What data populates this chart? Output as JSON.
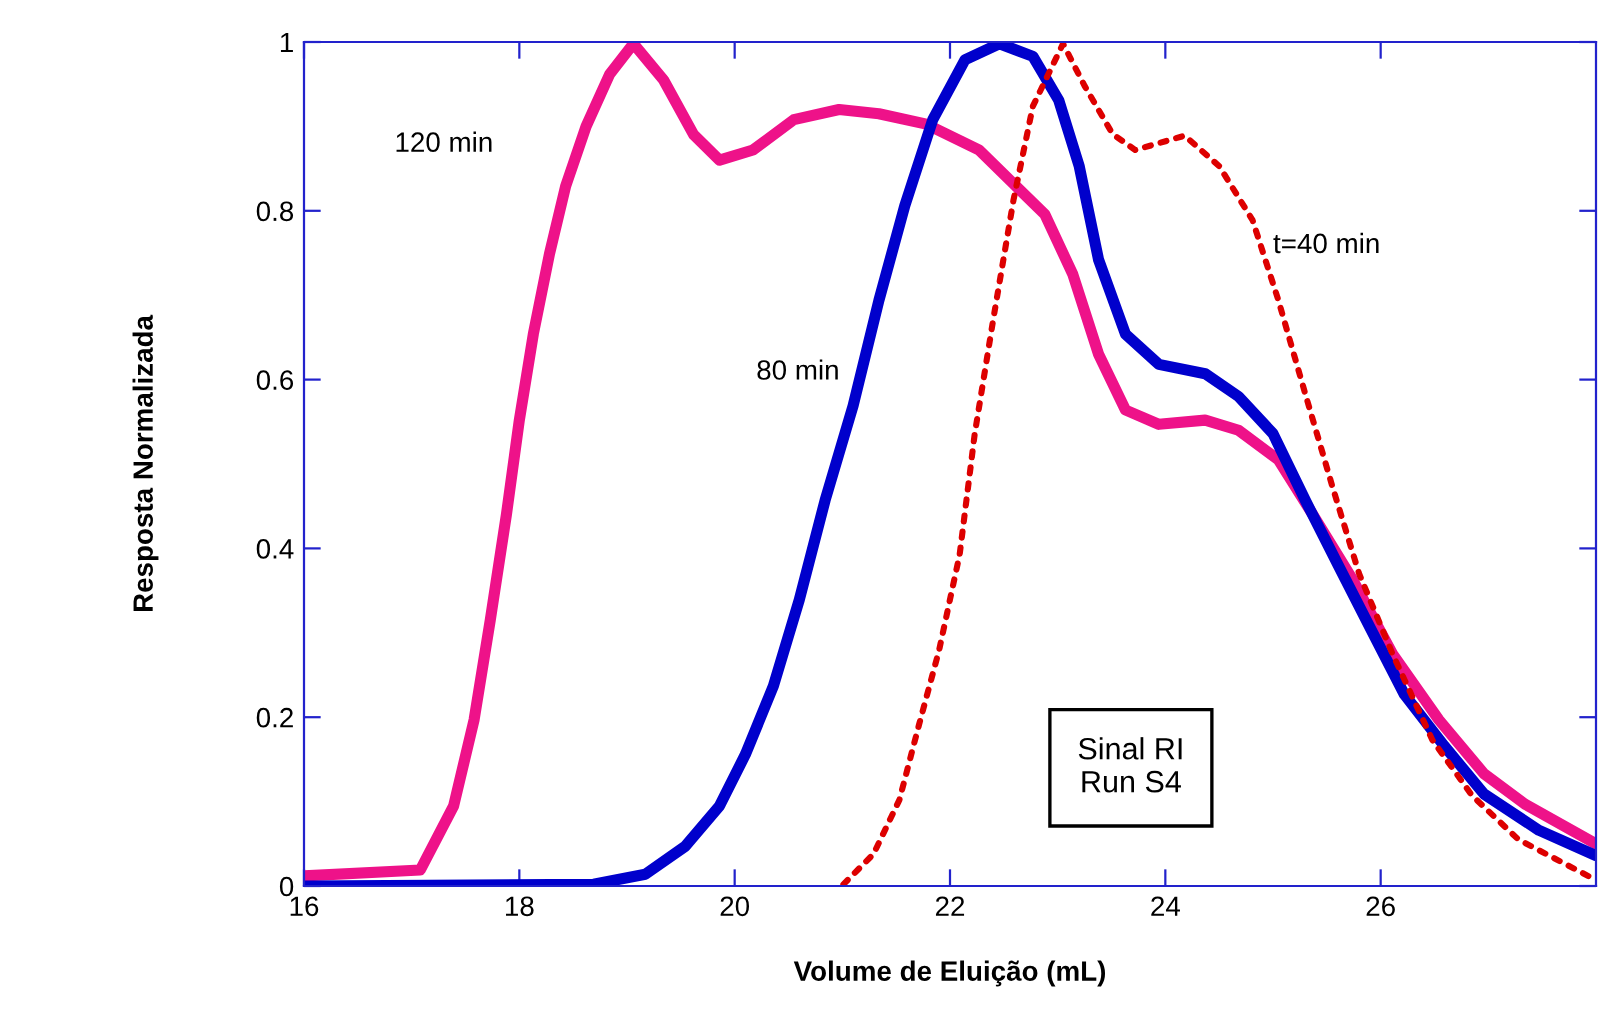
{
  "chart_data": {
    "type": "line",
    "xlabel": "Volume de Eluição (mL)",
    "ylabel": "Resposta Normalizada",
    "xlim": [
      16,
      28
    ],
    "ylim": [
      0,
      1
    ],
    "xticks": [
      16,
      18,
      20,
      22,
      24,
      26
    ],
    "yticks": [
      0,
      0.2,
      0.4,
      0.6,
      0.8,
      1
    ],
    "grid": false,
    "legend": false,
    "series": [
      {
        "name": "120 min",
        "color": "#ee1289",
        "line_style": "solid",
        "x": [
          16,
          17.08,
          17.39,
          17.58,
          17.73,
          17.88,
          18.0,
          18.13,
          18.28,
          18.43,
          18.62,
          18.84,
          19.06,
          19.34,
          19.62,
          19.86,
          20.17,
          20.55,
          20.97,
          21.34,
          21.77,
          22.27,
          22.59,
          22.88,
          23.14,
          23.38,
          23.63,
          23.94,
          24.37,
          24.68,
          25.05,
          25.37,
          25.74,
          26.11,
          26.54,
          26.96,
          27.34,
          28.0
        ],
        "values": [
          0.012,
          0.019,
          0.095,
          0.197,
          0.315,
          0.44,
          0.552,
          0.654,
          0.749,
          0.829,
          0.9,
          0.962,
          0.998,
          0.955,
          0.89,
          0.86,
          0.872,
          0.908,
          0.92,
          0.915,
          0.903,
          0.872,
          0.832,
          0.796,
          0.725,
          0.63,
          0.564,
          0.547,
          0.552,
          0.54,
          0.505,
          0.44,
          0.363,
          0.275,
          0.197,
          0.133,
          0.097,
          0.05
        ]
      },
      {
        "name": "80 min",
        "color": "#0000cc",
        "line_style": "solid",
        "x": [
          16,
          18.69,
          19.17,
          19.54,
          19.86,
          20.1,
          20.36,
          20.6,
          20.84,
          21.1,
          21.34,
          21.58,
          21.84,
          22.14,
          22.46,
          22.77,
          23.01,
          23.2,
          23.38,
          23.63,
          23.94,
          24.37,
          24.68,
          25.0,
          25.3,
          25.61,
          25.93,
          26.22,
          26.59,
          26.96,
          27.47,
          28.0
        ],
        "values": [
          0,
          0.002,
          0.014,
          0.047,
          0.095,
          0.156,
          0.237,
          0.339,
          0.457,
          0.569,
          0.694,
          0.806,
          0.908,
          0.979,
          0.998,
          0.983,
          0.931,
          0.853,
          0.742,
          0.654,
          0.618,
          0.607,
          0.58,
          0.536,
          0.457,
          0.379,
          0.299,
          0.227,
          0.166,
          0.109,
          0.066,
          0.036
        ]
      },
      {
        "name": "t=40 min",
        "color": "#dd0000",
        "line_style": "dotted",
        "x": [
          21.01,
          21.29,
          21.53,
          21.71,
          21.9,
          22.09,
          22.23,
          22.4,
          22.59,
          22.77,
          23.05,
          23.25,
          23.51,
          23.72,
          24.18,
          24.5,
          24.81,
          25.05,
          25.3,
          25.55,
          25.8,
          26.11,
          26.48,
          26.85,
          27.28,
          28.0
        ],
        "values": [
          0.002,
          0.038,
          0.102,
          0.19,
          0.28,
          0.393,
          0.536,
          0.67,
          0.813,
          0.924,
          0.998,
          0.948,
          0.891,
          0.872,
          0.889,
          0.853,
          0.789,
          0.694,
          0.583,
          0.474,
          0.37,
          0.275,
          0.173,
          0.107,
          0.055,
          0.007
        ]
      }
    ],
    "annotations": [
      "Sinal RI\nRun S4"
    ]
  }
}
